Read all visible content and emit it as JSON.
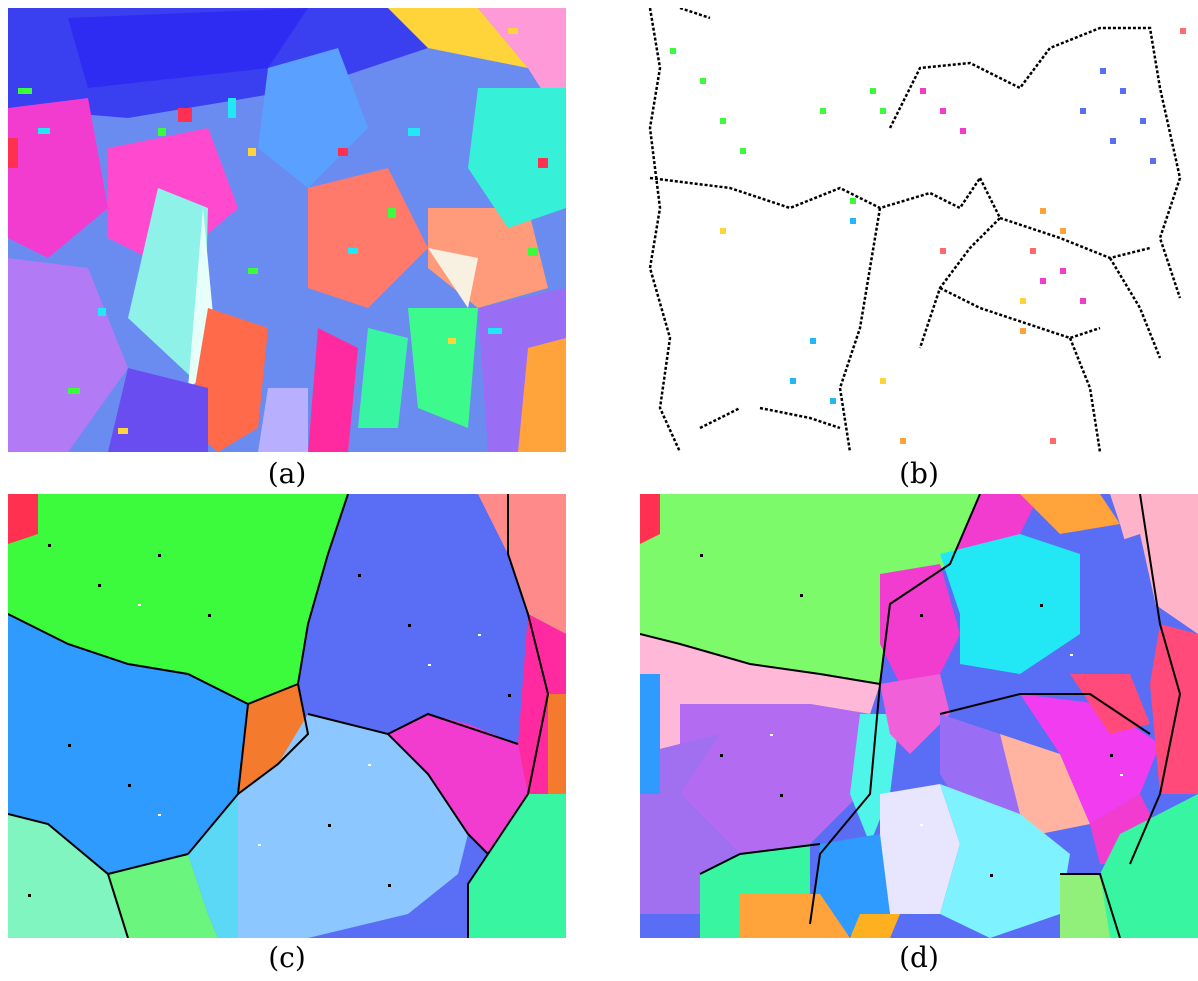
{
  "figure": {
    "captions": {
      "a": "(a)",
      "b": "(b)",
      "c": "(c)",
      "d": "(d)"
    },
    "palette": {
      "green": "#3cfb3c",
      "blue": "#5a6df5",
      "sky": "#2f9bff",
      "light_blue": "#8cc8ff",
      "magenta": "#f23ccf",
      "pink": "#ff2aa0",
      "orange": "#f47a2e",
      "mint": "#38f5a2",
      "salmon": "#ff8a8a",
      "cyan": "#22e8f5",
      "purple": "#b36bf2",
      "peach": "#ffb3a0",
      "lavender": "#e8e6ff",
      "light_cyan": "#7ef2ff",
      "light_green": "#7dfa6a",
      "light_pink": "#ffb8d8",
      "amber": "#ffa33a",
      "red": "#ff3050",
      "boundary": "#000000"
    }
  }
}
